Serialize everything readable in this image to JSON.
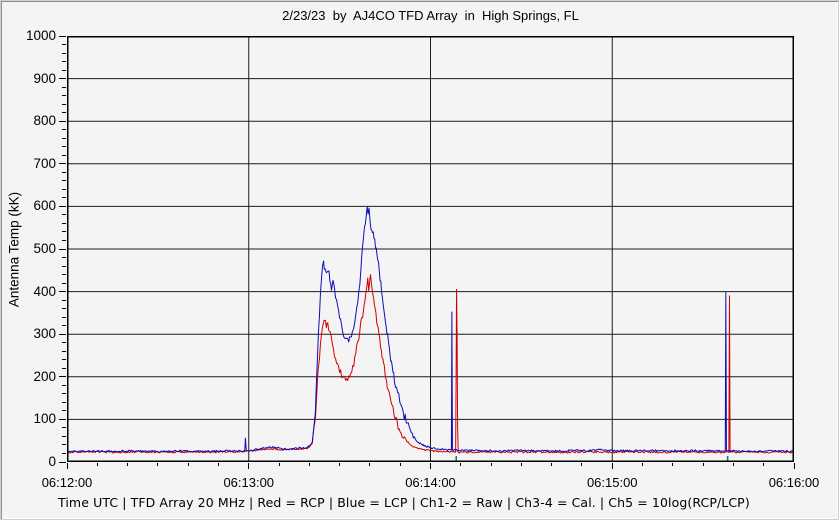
{
  "chart_data": {
    "type": "line",
    "title": "2/23/23  by  AJ4CO TFD Array  in  High Springs, FL",
    "ylabel": "Antenna Temp (kK)",
    "xlabel": "Time UTC",
    "footer_caption": "Time UTC | TFD Array 20 MHz | Red = RCP | Blue = LCP | Ch1-2 = Raw | Ch3-4 = Cal. | Ch5 = 10log(RCP/LCP)",
    "grid": true,
    "legend_position": "none",
    "ylim": [
      0,
      1000
    ],
    "y_tick_step": 100,
    "y_minor_step": 20,
    "y_tick_labels": [
      "0",
      "100",
      "200",
      "300",
      "400",
      "500",
      "600",
      "700",
      "800",
      "900",
      "1000"
    ],
    "x_range_s": [
      0,
      240
    ],
    "x_tick_times_s": [
      0,
      60,
      120,
      180,
      240
    ],
    "x_tick_labels": [
      "06:12:00",
      "06:13:00",
      "06:14:00",
      "06:15:00",
      "06:16:00"
    ],
    "x_minor_step_s": 10,
    "colors": {
      "rcp": "#cc0000",
      "lcp": "#0d0db8",
      "cal_mark": "#007878",
      "grid": "#1c1c1c",
      "frame": "#000000",
      "background": "#f4f4f5"
    },
    "noise": {
      "seed": 11,
      "step_s": 0.33,
      "baseline_amp_kk": 2.2,
      "burst_amp_kk": 10,
      "burst_threshold_kk": 60
    },
    "series": [
      {
        "name": "RCP (Red, right circular polarization)",
        "color_key": "rcp",
        "points_t_s_v_kk": [
          [
            0,
            23
          ],
          [
            8,
            24
          ],
          [
            16,
            23
          ],
          [
            24,
            24
          ],
          [
            32,
            23
          ],
          [
            40,
            24
          ],
          [
            48,
            23
          ],
          [
            54,
            24
          ],
          [
            59,
            25
          ],
          [
            61,
            26
          ],
          [
            63,
            28
          ],
          [
            65,
            30
          ],
          [
            67,
            31
          ],
          [
            69,
            30
          ],
          [
            71,
            29
          ],
          [
            73,
            29
          ],
          [
            75,
            30
          ],
          [
            77,
            31
          ],
          [
            79,
            32
          ],
          [
            80,
            35
          ],
          [
            81,
            44
          ],
          [
            82,
            100
          ],
          [
            83,
            225
          ],
          [
            84,
            302
          ],
          [
            84.6,
            322
          ],
          [
            85.1,
            336
          ],
          [
            85.6,
            320
          ],
          [
            86.1,
            328
          ],
          [
            86.6,
            312
          ],
          [
            87.2,
            300
          ],
          [
            88,
            264
          ],
          [
            89,
            234
          ],
          [
            90,
            213
          ],
          [
            91,
            201
          ],
          [
            92,
            194
          ],
          [
            93,
            199
          ],
          [
            94,
            216
          ],
          [
            95,
            243
          ],
          [
            96,
            281
          ],
          [
            96.6,
            302
          ],
          [
            97.1,
            332
          ],
          [
            97.6,
            342
          ],
          [
            98.1,
            372
          ],
          [
            98.6,
            396
          ],
          [
            99,
            412
          ],
          [
            99.3,
            432
          ],
          [
            99.6,
            402
          ],
          [
            99.9,
            422
          ],
          [
            100.2,
            440
          ],
          [
            100.6,
            412
          ],
          [
            101,
            392
          ],
          [
            101.5,
            366
          ],
          [
            102,
            346
          ],
          [
            102.5,
            321
          ],
          [
            103,
            296
          ],
          [
            103.5,
            271
          ],
          [
            104,
            249
          ],
          [
            104.5,
            229
          ],
          [
            105,
            209
          ],
          [
            105.5,
            189
          ],
          [
            106,
            169
          ],
          [
            106.6,
            151
          ],
          [
            107.2,
            136
          ],
          [
            108,
            111
          ],
          [
            109,
            91
          ],
          [
            110,
            73
          ],
          [
            111,
            61
          ],
          [
            112,
            51
          ],
          [
            113,
            43
          ],
          [
            114,
            38
          ],
          [
            115,
            34
          ],
          [
            117,
            30
          ],
          [
            119.5,
            27
          ],
          [
            122,
            25
          ],
          [
            125,
            24
          ],
          [
            128.3,
            23
          ],
          [
            128.45,
            195
          ],
          [
            128.6,
            405
          ],
          [
            128.78,
            295
          ],
          [
            128.95,
            85
          ],
          [
            129.15,
            23
          ],
          [
            133,
            23
          ],
          [
            140,
            24
          ],
          [
            148,
            23
          ],
          [
            156,
            24
          ],
          [
            164,
            23
          ],
          [
            172,
            24
          ],
          [
            180,
            23
          ],
          [
            188,
            24
          ],
          [
            196,
            23
          ],
          [
            204,
            24
          ],
          [
            211,
            23
          ],
          [
            218.5,
            23
          ],
          [
            218.7,
            390
          ],
          [
            218.9,
            23
          ],
          [
            224,
            24
          ],
          [
            231,
            23
          ],
          [
            240,
            23
          ]
        ]
      },
      {
        "name": "LCP (Blue, left circular polarization)",
        "color_key": "lcp",
        "points_t_s_v_kk": [
          [
            0,
            25
          ],
          [
            6,
            26
          ],
          [
            12,
            25
          ],
          [
            18,
            26
          ],
          [
            24,
            25
          ],
          [
            30,
            25
          ],
          [
            36,
            26
          ],
          [
            42,
            25
          ],
          [
            48,
            25
          ],
          [
            54,
            26
          ],
          [
            58.7,
            26
          ],
          [
            58.9,
            56
          ],
          [
            59.2,
            26
          ],
          [
            61,
            27
          ],
          [
            63,
            30
          ],
          [
            65,
            33
          ],
          [
            67,
            35
          ],
          [
            69,
            34
          ],
          [
            71,
            31
          ],
          [
            73,
            30
          ],
          [
            75,
            31
          ],
          [
            77,
            33
          ],
          [
            79,
            34
          ],
          [
            80,
            37
          ],
          [
            81,
            48
          ],
          [
            82,
            120
          ],
          [
            83,
            300
          ],
          [
            84,
            432
          ],
          [
            84.7,
            472
          ],
          [
            85.2,
            450
          ],
          [
            85.7,
            440
          ],
          [
            86.2,
            452
          ],
          [
            86.8,
            425
          ],
          [
            87.3,
            408
          ],
          [
            87.8,
            422
          ],
          [
            88.3,
            412
          ],
          [
            89,
            378
          ],
          [
            90,
            338
          ],
          [
            91,
            306
          ],
          [
            92,
            290
          ],
          [
            93,
            281
          ],
          [
            93.6,
            292
          ],
          [
            94.2,
            302
          ],
          [
            95,
            323
          ],
          [
            96,
            372
          ],
          [
            97,
            452
          ],
          [
            97.6,
            505
          ],
          [
            98.2,
            548
          ],
          [
            98.7,
            570
          ],
          [
            99.1,
            600
          ],
          [
            99.4,
            582
          ],
          [
            99.7,
            596
          ],
          [
            100.1,
            562
          ],
          [
            100.6,
            548
          ],
          [
            101.1,
            540
          ],
          [
            101.6,
            521
          ],
          [
            102.1,
            502
          ],
          [
            102.6,
            476
          ],
          [
            103.1,
            450
          ],
          [
            103.6,
            421
          ],
          [
            104.1,
            392
          ],
          [
            104.6,
            362
          ],
          [
            105.1,
            332
          ],
          [
            105.6,
            306
          ],
          [
            106.1,
            281
          ],
          [
            106.6,
            257
          ],
          [
            107.1,
            233
          ],
          [
            107.6,
            212
          ],
          [
            108.1,
            192
          ],
          [
            108.8,
            172
          ],
          [
            109.5,
            158
          ],
          [
            110.3,
            138
          ],
          [
            111,
            116
          ],
          [
            112,
            95
          ],
          [
            113,
            78
          ],
          [
            114,
            64
          ],
          [
            115,
            54
          ],
          [
            116,
            46
          ],
          [
            117,
            41
          ],
          [
            118.5,
            37
          ],
          [
            120,
            34
          ],
          [
            122,
            31
          ],
          [
            124.5,
            29
          ],
          [
            126.9,
            28
          ],
          [
            127.05,
            352
          ],
          [
            127.25,
            28
          ],
          [
            130,
            27
          ],
          [
            136,
            27
          ],
          [
            142,
            26
          ],
          [
            148,
            27
          ],
          [
            154,
            27
          ],
          [
            160,
            26
          ],
          [
            166,
            27
          ],
          [
            172,
            27
          ],
          [
            176,
            29
          ],
          [
            180,
            27
          ],
          [
            186,
            26
          ],
          [
            192,
            27
          ],
          [
            198,
            26
          ],
          [
            204,
            27
          ],
          [
            210,
            26
          ],
          [
            217.3,
            26
          ],
          [
            217.5,
            398
          ],
          [
            217.7,
            26
          ],
          [
            222,
            26
          ],
          [
            228,
            25
          ],
          [
            234,
            26
          ],
          [
            240,
            25
          ]
        ]
      }
    ],
    "cal_marks": [
      {
        "t_s": 128.5,
        "v0_kk": 0,
        "v1_kk": 14
      },
      {
        "t_s": 218.1,
        "v0_kk": 0,
        "v1_kk": 14
      }
    ]
  }
}
